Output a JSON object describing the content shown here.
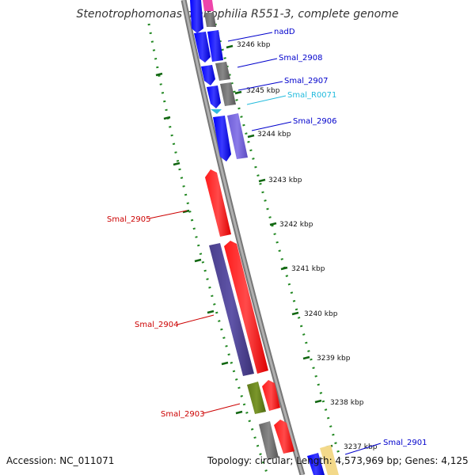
{
  "title": "Stenotrophomonas maltophilia R551-3, complete genome",
  "footer": {
    "accession": "Accession: NC_011071",
    "topology": "Topology: circular; Length: 4,573,969 bp; Genes: 4,125"
  },
  "kbp_labels": [
    "3246 kbp",
    "3245 kbp",
    "3244 kbp",
    "3243 kbp",
    "3242 kbp",
    "3241 kbp",
    "3240 kbp",
    "3239 kbp",
    "3238 kbp",
    "3237 kbp"
  ],
  "gene_labels": {
    "nadD": "nadD",
    "smal_2908": "Smal_2908",
    "smal_2907": "Smal_2907",
    "smal_r0071": "Smal_R0071",
    "smal_2906": "Smal_2906",
    "smal_2905": "Smal_2905",
    "smal_2904": "Smal_2904",
    "smal_2903": "Smal_2903",
    "smal_2901": "Smal_2901"
  },
  "colors": {
    "cds_forward": "#0000ee",
    "cds_reverse": "#ff0000",
    "rna": "#33bbdd",
    "backbone": "#888888",
    "dots": "#228822",
    "label_blue": "#0000cc",
    "label_red": "#cc0000",
    "label_cyan": "#22bbdd"
  }
}
